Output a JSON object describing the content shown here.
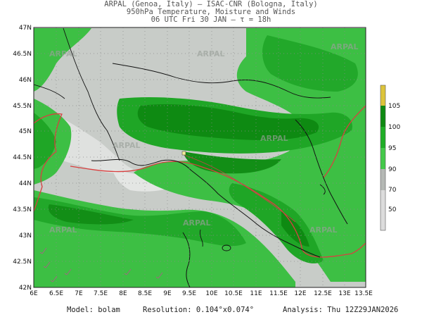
{
  "header": {
    "line1": "ARPAL (Genoa, Italy)  —  ISAC-CNR (Bologna, Italy)",
    "line2": "950hPa Temperature, Moisture and Winds",
    "line3": "06 UTC Fri 30 JAN  —  τ = 18h"
  },
  "map": {
    "lat_labels": [
      "47N",
      "46.5N",
      "46N",
      "45.5N",
      "45N",
      "44.5N",
      "44N",
      "43.5N",
      "43N",
      "42.5N",
      "42N"
    ],
    "lon_labels": [
      "6E",
      "6.5E",
      "7E",
      "7.5E",
      "8E",
      "8.5E",
      "9E",
      "9.5E",
      "10E",
      "10.5E",
      "11E",
      "11.5E",
      "12E",
      "12.5E",
      "13E",
      "13.5E"
    ],
    "watermark": "ARPAL"
  },
  "colorbar": {
    "labels": [
      "105",
      "100",
      "95",
      "90",
      "70",
      "50"
    ],
    "colors": {
      "105": "#ddc43a",
      "100": "#0e8a12",
      "95": "#1fae26",
      "90": "#44c94a",
      "70": "#b4b8b4",
      "50": "#dcdcdc"
    }
  },
  "footer": {
    "model": "Model: bolam",
    "resolution": "Resolution: 0.104°x0.074°",
    "analysis": "Analysis: Thu 12Z29JAN2026"
  }
}
